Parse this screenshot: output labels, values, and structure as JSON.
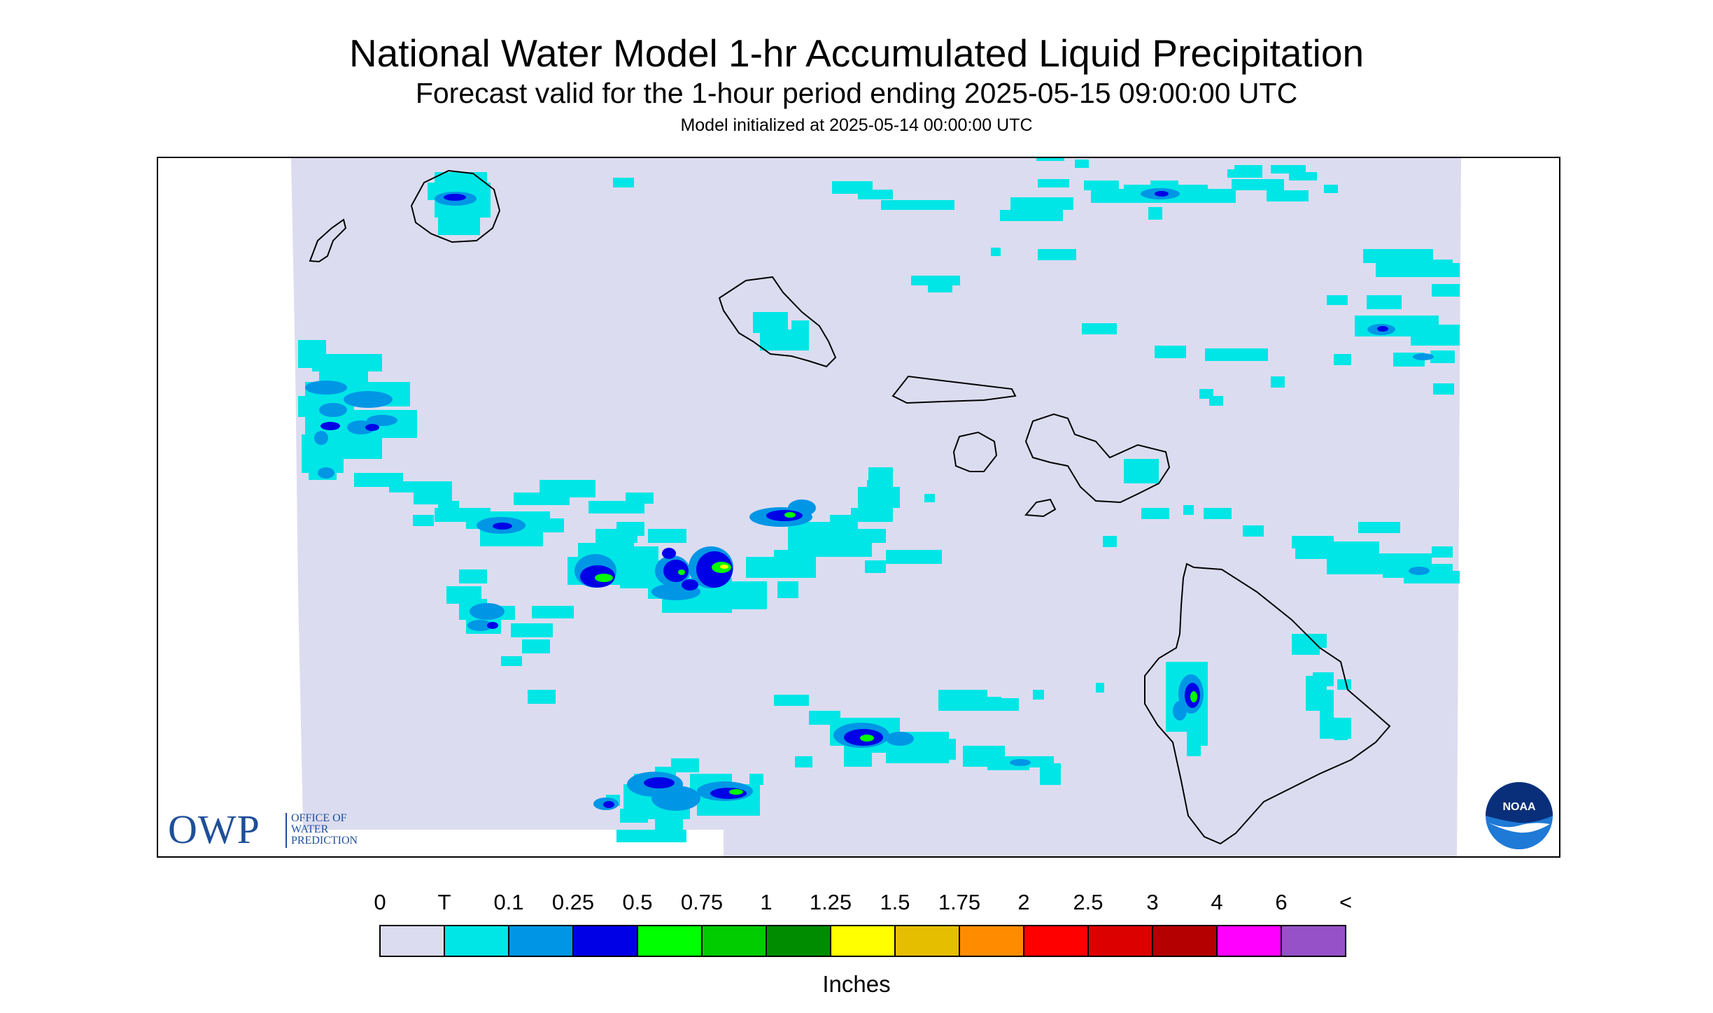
{
  "header": {
    "title": "National Water Model 1-hr Accumulated Liquid Precipitation",
    "subtitle": "Forecast valid for the 1-hour period ending 2025-05-15 09:00:00 UTC",
    "init": "Model initialized at 2025-05-14 00:00:00 UTC"
  },
  "logos": {
    "owp_letters": "OWP",
    "owp_line1": "OFFICE OF",
    "owp_line2": "WATER",
    "owp_line3": "PREDICTION",
    "noaa": "NOAA"
  },
  "legend": {
    "ticks": [
      "0",
      "T",
      "0.1",
      "0.25",
      "0.5",
      "0.75",
      "1",
      "1.25",
      "1.5",
      "1.75",
      "2",
      "2.5",
      "3",
      "4",
      "6",
      "<"
    ],
    "colors": [
      "#dcdcf0",
      "#00e6e6",
      "#0096e6",
      "#0000e6",
      "#00ff00",
      "#00cc00",
      "#008c00",
      "#ffff00",
      "#e6be00",
      "#ff8c00",
      "#ff0000",
      "#dc0000",
      "#b40000",
      "#ff00ff",
      "#9650c8"
    ],
    "units": "Inches"
  }
}
